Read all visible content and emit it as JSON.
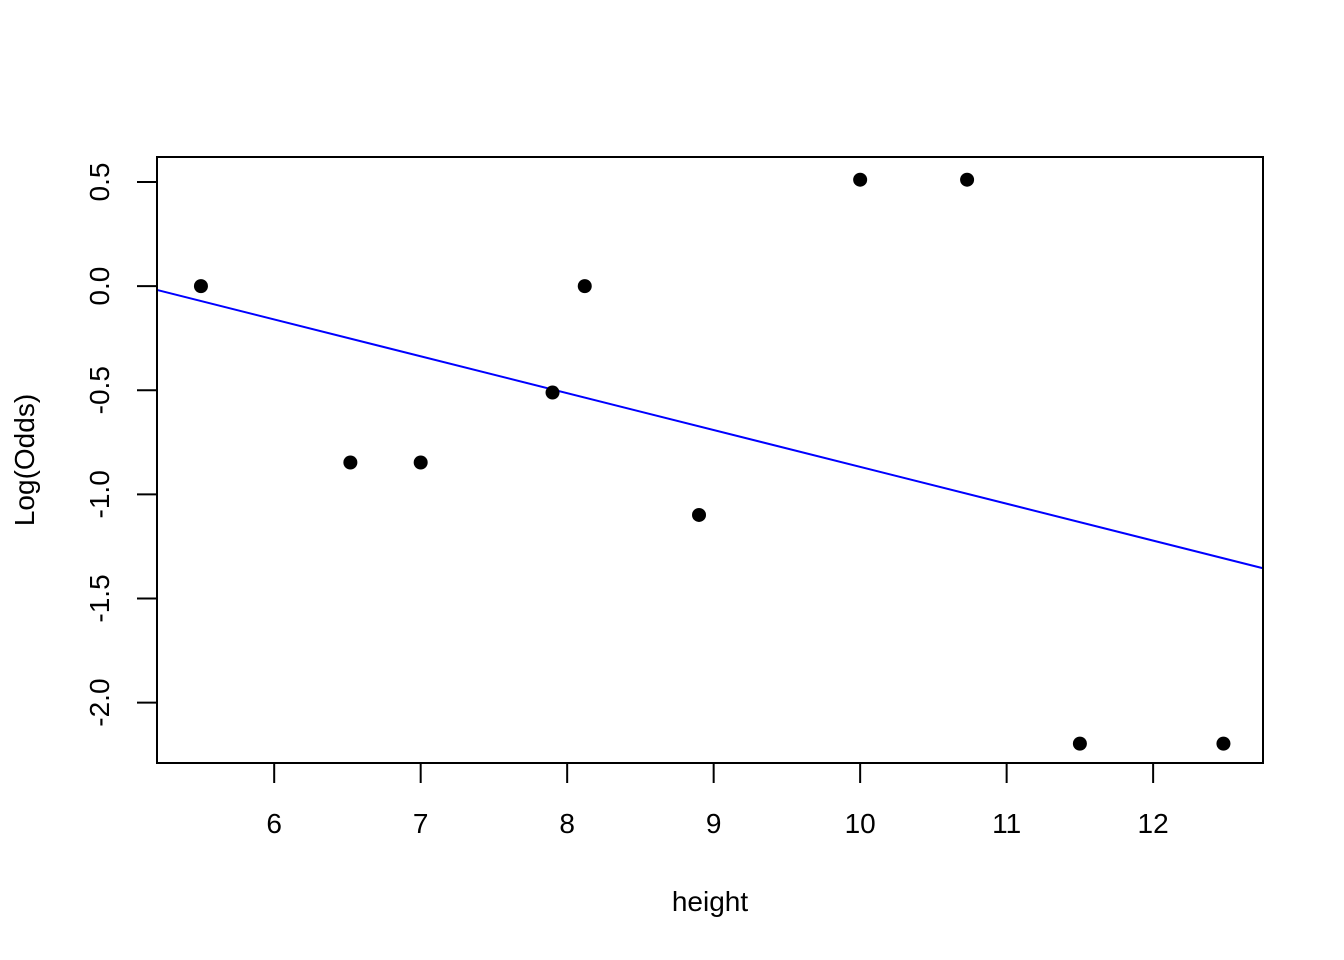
{
  "chart_data": {
    "type": "scatter",
    "title": "",
    "xlabel": "height",
    "ylabel": "Log(Odds)",
    "xlim": [
      5.2,
      12.75
    ],
    "ylim": [
      -2.29,
      0.62
    ],
    "x_ticks": [
      6,
      7,
      8,
      9,
      10,
      11,
      12
    ],
    "x_tick_labels": [
      "6",
      "7",
      "8",
      "9",
      "10",
      "11",
      "12"
    ],
    "y_ticks": [
      -2.0,
      -1.5,
      -1.0,
      -0.5,
      0.0,
      0.5
    ],
    "y_tick_labels": [
      "-2.0",
      "-1.5",
      "-1.0",
      "-0.5",
      "0.0",
      "0.5"
    ],
    "grid": false,
    "points": [
      {
        "x": 5.5,
        "y": 0.0
      },
      {
        "x": 6.52,
        "y": -0.847
      },
      {
        "x": 7.0,
        "y": -0.847
      },
      {
        "x": 7.9,
        "y": -0.511
      },
      {
        "x": 8.12,
        "y": 0.0
      },
      {
        "x": 8.9,
        "y": -1.099
      },
      {
        "x": 10.0,
        "y": 0.511
      },
      {
        "x": 10.73,
        "y": 0.511
      },
      {
        "x": 11.5,
        "y": -2.197
      },
      {
        "x": 12.48,
        "y": -2.197
      }
    ],
    "point_color": "#000000",
    "fit_line": {
      "intercept": 0.902,
      "slope": -0.177,
      "color": "#0000ff"
    }
  }
}
